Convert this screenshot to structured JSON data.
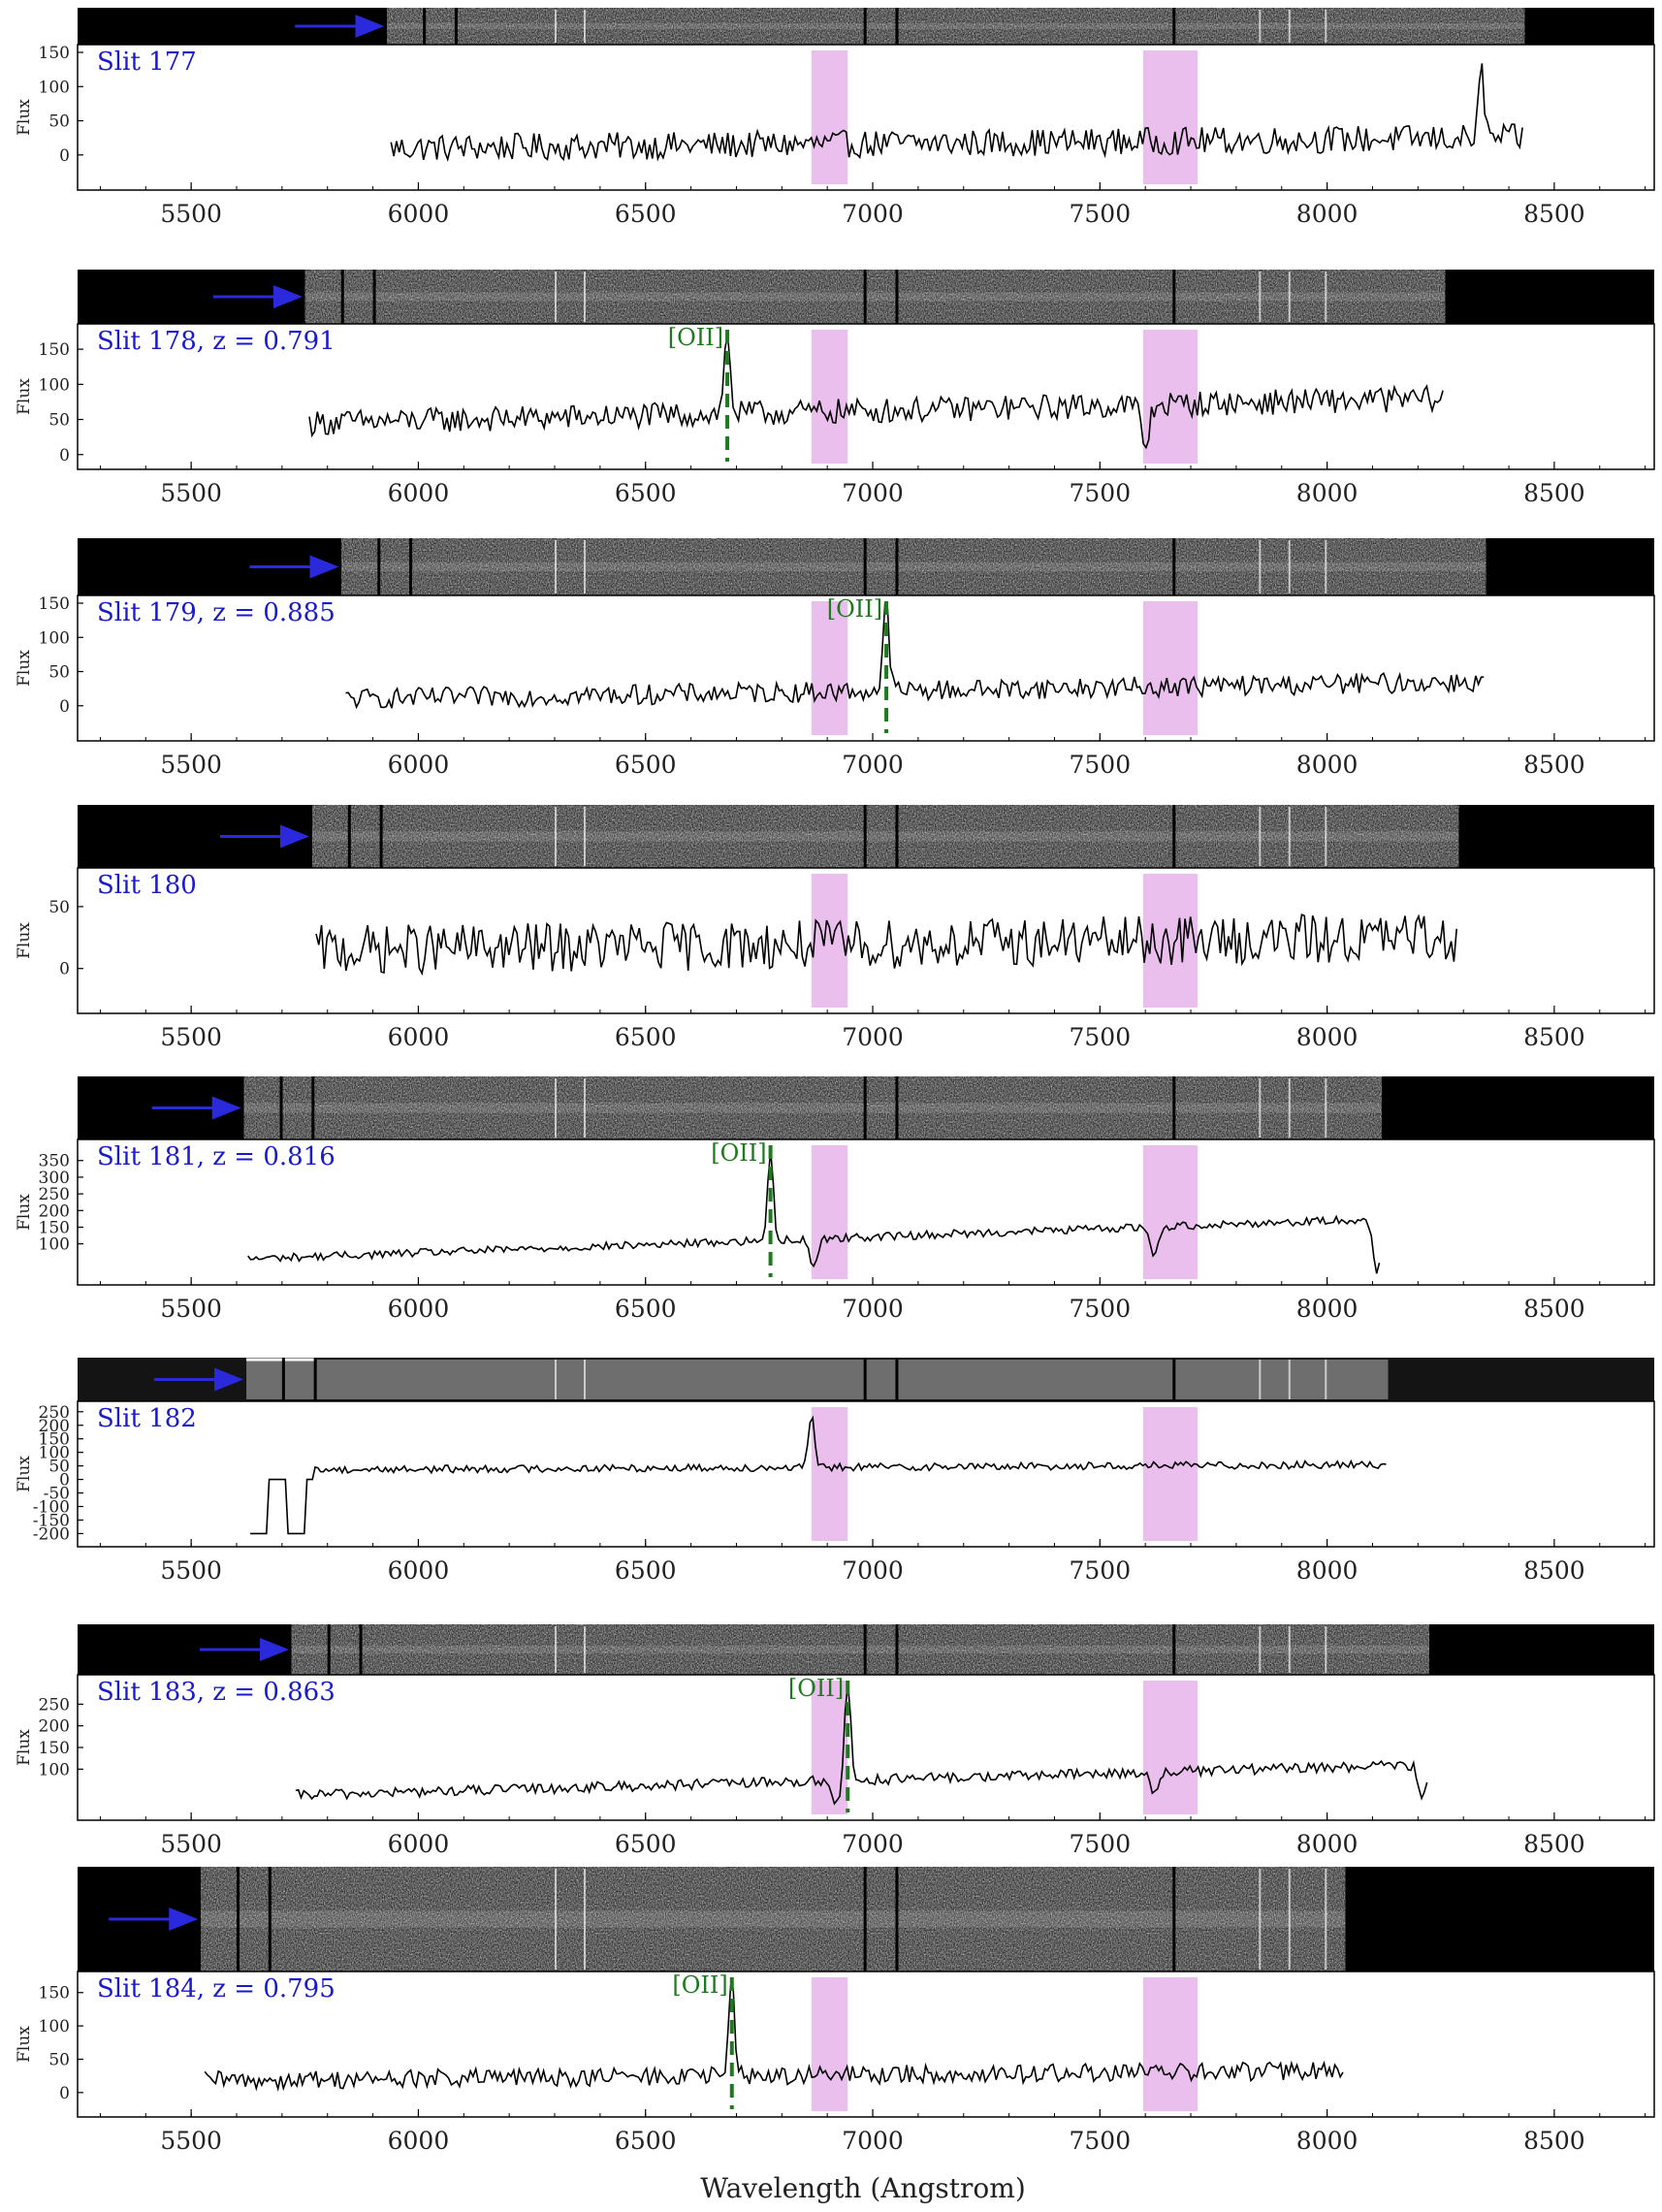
{
  "figure": {
    "xlabel": "Wavelength (Angstrom)",
    "ylabel": "Flux",
    "xlim": [
      5250,
      8720
    ],
    "xticks": [
      5500,
      6000,
      6500,
      7000,
      7500,
      8000,
      8500
    ],
    "tick_labels": [
      "5500",
      "6000",
      "6500",
      "7000",
      "7500",
      "8000",
      "8500"
    ],
    "shaded_bands": [
      [
        6865,
        6945
      ],
      [
        7595,
        7715
      ]
    ],
    "colors": {
      "shade": "#e8b4ea",
      "arrow": "#2a2adc",
      "label": "#1a1acc",
      "emission": "#1d7a1d",
      "line": "#000000"
    }
  },
  "chart_data": [
    {
      "type": "line",
      "label": "Slit 177",
      "z": null,
      "emission_label": null,
      "emission_wavelength": null,
      "wave_range": [
        5940,
        8430
      ],
      "ylim": [
        -40,
        150
      ],
      "yticks": [
        0,
        50,
        100,
        150
      ],
      "baseline": 10,
      "noise": 20,
      "slope": 15,
      "features": [
        [
          8340,
          95
        ]
      ],
      "dips": [],
      "two_d_spectrum": true
    },
    {
      "type": "line",
      "label": "Slit 178, z = 0.791",
      "z": "0.791",
      "emission_label": "[OII]",
      "emission_wavelength": 6680,
      "wave_range": [
        5760,
        8255
      ],
      "ylim": [
        -10,
        175
      ],
      "yticks": [
        0,
        50,
        100,
        150
      ],
      "baseline": 45,
      "noise": 18,
      "slope": 35,
      "features": [
        [
          6680,
          120
        ]
      ],
      "dips": [
        [
          7600,
          -60
        ]
      ],
      "two_d_spectrum": true
    },
    {
      "type": "line",
      "label": "Slit 179, z = 0.885",
      "z": "0.885",
      "emission_label": "[OII]",
      "emission_wavelength": 7030,
      "wave_range": [
        5840,
        8345
      ],
      "ylim": [
        -40,
        150
      ],
      "yticks": [
        0,
        50,
        100,
        150
      ],
      "baseline": 10,
      "noise": 15,
      "slope": 25,
      "features": [
        [
          7030,
          130
        ]
      ],
      "dips": [],
      "two_d_spectrum": true
    },
    {
      "type": "line",
      "label": "Slit 180",
      "z": null,
      "emission_label": null,
      "emission_wavelength": null,
      "wave_range": [
        5775,
        8285
      ],
      "ylim": [
        -30,
        75
      ],
      "yticks": [
        0,
        50
      ],
      "baseline": 15,
      "noise": 20,
      "slope": 10,
      "features": [],
      "dips": [],
      "two_d_spectrum": true
    },
    {
      "type": "line",
      "label": "Slit 181, z = 0.816",
      "z": "0.816",
      "emission_label": "[OII]",
      "emission_wavelength": 6775,
      "wave_range": [
        5625,
        8115
      ],
      "ylim": [
        0,
        390
      ],
      "yticks": [
        100,
        150,
        200,
        250,
        300,
        350
      ],
      "baseline": 55,
      "noise": 12,
      "slope": 120,
      "features": [
        [
          6775,
          260
        ]
      ],
      "dips": [
        [
          6870,
          -80
        ],
        [
          7620,
          -90
        ],
        [
          8110,
          -160
        ]
      ],
      "two_d_spectrum": true
    },
    {
      "type": "line",
      "label": "Slit 182",
      "z": null,
      "emission_label": null,
      "emission_wavelength": null,
      "wave_range": [
        5630,
        8130
      ],
      "ylim": [
        -220,
        260
      ],
      "yticks": [
        250,
        200,
        150,
        100,
        50,
        0,
        -50,
        -100,
        -150,
        -200
      ],
      "baseline": 35,
      "noise": 14,
      "slope": 20,
      "features": [
        [
          6865,
          190
        ]
      ],
      "dips": [],
      "two_d_spectrum": true
    },
    {
      "type": "line",
      "label": "Slit 183, z = 0.863",
      "z": "0.863",
      "emission_label": "[OII]",
      "emission_wavelength": 6945,
      "wave_range": [
        5730,
        8220
      ],
      "ylim": [
        0,
        300
      ],
      "yticks": [
        100,
        150,
        200,
        250
      ],
      "baseline": 40,
      "noise": 12,
      "slope": 70,
      "features": [
        [
          6945,
          240
        ]
      ],
      "dips": [
        [
          6920,
          -55
        ],
        [
          7620,
          -50
        ],
        [
          8210,
          -80
        ]
      ],
      "two_d_spectrum": true
    },
    {
      "type": "line",
      "label": "Slit 184, z = 0.795",
      "z": "0.795",
      "emission_label": "[OII]",
      "emission_wavelength": 6690,
      "wave_range": [
        5530,
        8035
      ],
      "ylim": [
        -25,
        170
      ],
      "yticks": [
        0,
        50,
        100,
        150
      ],
      "baseline": 18,
      "noise": 14,
      "slope": 15,
      "features": [
        [
          6690,
          140
        ]
      ],
      "dips": [],
      "two_d_spectrum": true
    }
  ]
}
